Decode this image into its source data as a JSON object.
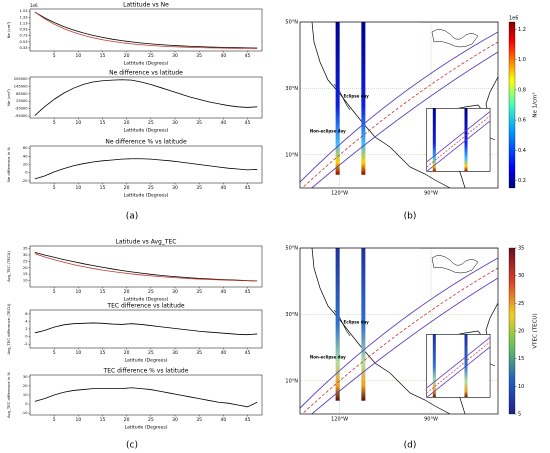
{
  "panel_labels": [
    "(a)",
    "(b)",
    "(c)",
    "(d)"
  ],
  "chart_data": [
    {
      "type": "line",
      "title": "Lattitude vs Ne",
      "xlabel": "Lattitude (Degrees)",
      "ylabel": "Ne (cm³)",
      "offset": "1e6",
      "x": [
        1,
        3,
        5,
        7,
        9,
        11,
        13,
        15,
        17,
        19,
        21,
        23,
        25,
        27,
        29,
        31,
        33,
        35,
        37,
        39,
        41,
        43,
        45,
        47
      ],
      "series": [
        {
          "color": "#000000",
          "values": [
            1.5,
            1.315,
            1.159,
            1.027,
            0.915,
            0.821,
            0.741,
            0.673,
            0.616,
            0.568,
            0.527,
            0.492,
            0.463,
            0.438,
            0.417,
            0.399,
            0.384,
            0.372,
            0.361,
            0.352,
            0.344,
            0.338,
            0.332,
            0.327
          ]
        },
        {
          "color": "#c0392b",
          "values": [
            1.5,
            1.283,
            1.105,
            0.959,
            0.84,
            0.742,
            0.662,
            0.596,
            0.543,
            0.499,
            0.463,
            0.433,
            0.409,
            0.389,
            0.373,
            0.36,
            0.349,
            0.34,
            0.333,
            0.327,
            0.322,
            0.318,
            0.315,
            0.312
          ]
        }
      ],
      "xlim": [
        0,
        48
      ],
      "xticks": [
        5,
        10,
        15,
        20,
        25,
        30,
        35,
        40,
        45
      ],
      "ylim": [
        0.23,
        1.6
      ],
      "yticks": [
        1.53,
        1.33,
        1.13,
        0.93,
        0.73,
        0.53,
        0.33
      ]
    },
    {
      "type": "line",
      "title": "Ne difference vs latitude",
      "xlabel": "Lattitude (Degrees)",
      "ylabel": "Ne (cm³)",
      "x": [
        1,
        3,
        5,
        7,
        9,
        11,
        13,
        15,
        17,
        19,
        21,
        23,
        25,
        27,
        29,
        31,
        33,
        35,
        37,
        39,
        41,
        43,
        45,
        47
      ],
      "series": [
        {
          "color": "#000000",
          "values": [
            -90000,
            -20000,
            40000,
            90000,
            130000,
            160000,
            180000,
            190000,
            195000,
            198000,
            195000,
            180000,
            160000,
            135000,
            110000,
            85000,
            60000,
            40000,
            20000,
            5000,
            -10000,
            -20000,
            -25000,
            -20000
          ]
        }
      ],
      "xlim": [
        0,
        48
      ],
      "xticks": [
        5,
        10,
        15,
        20,
        25,
        30,
        35,
        40,
        45
      ],
      "ylim": [
        -110000,
        220000
      ],
      "yticks": [
        205000,
        145000,
        85000,
        25000,
        -35000,
        -95000
      ]
    },
    {
      "type": "line",
      "title": "Ne difference % vs latitude",
      "xlabel": "Lattitude (Degrees)",
      "ylabel": "Ne difference in %",
      "x": [
        1,
        3,
        5,
        7,
        9,
        11,
        13,
        15,
        17,
        19,
        21,
        23,
        25,
        27,
        29,
        31,
        33,
        35,
        37,
        39,
        41,
        43,
        45,
        47
      ],
      "series": [
        {
          "color": "#000000",
          "values": [
            -15,
            -8,
            2,
            10,
            17,
            22,
            26,
            29,
            31,
            33,
            34,
            34,
            33,
            31,
            29,
            26,
            23,
            20,
            17,
            14,
            11,
            9,
            7,
            8
          ]
        }
      ],
      "xlim": [
        0,
        48
      ],
      "xticks": [
        5,
        10,
        15,
        20,
        25,
        30,
        35,
        40,
        45
      ],
      "ylim": [
        -25,
        65
      ],
      "yticks": [
        60,
        40,
        20,
        0,
        -20
      ]
    },
    {
      "type": "map",
      "latlim": [
        0,
        50
      ],
      "lonlim": [
        -133,
        -68
      ],
      "colormap": "jet",
      "latticks": [
        {
          "value": 50,
          "label": "50°N"
        },
        {
          "value": 30,
          "label": "30°N"
        },
        {
          "value": 10,
          "label": "10°N"
        }
      ],
      "lonticks": [
        {
          "value": -120,
          "label": "120°W"
        },
        {
          "value": -90,
          "label": "90°W"
        }
      ],
      "annotations": [
        "Eclipse day",
        "Non-eclipse day"
      ],
      "colorbar": {
        "label": "Ne 1/cm³",
        "offset": "1e6",
        "clim": [
          0.15,
          1.25
        ],
        "ticks": [
          0.2,
          0.4,
          0.6,
          0.8,
          {
            "value": 1.0,
            "label": "1.0"
          },
          1.2
        ]
      }
    },
    {
      "type": "line",
      "title": "Latitude vs Avg_TEC",
      "xlabel": "Lattitude (Degrees)",
      "ylabel": "Avg_TEC (TECU)",
      "x": [
        1,
        3,
        5,
        7,
        9,
        11,
        13,
        15,
        17,
        19,
        21,
        23,
        25,
        27,
        29,
        31,
        33,
        35,
        37,
        39,
        41,
        43,
        45,
        47
      ],
      "series": [
        {
          "color": "#000000",
          "values": [
            32,
            30,
            28.2,
            26.4,
            24.8,
            23.2,
            21.8,
            20.4,
            19.1,
            17.9,
            16.8,
            15.8,
            14.9,
            14.1,
            13.4,
            12.8,
            12.2,
            11.7,
            11.3,
            10.9,
            10.6,
            10.3,
            10.0,
            9.8
          ]
        },
        {
          "color": "#c0392b",
          "values": [
            31,
            28.5,
            26.3,
            24.3,
            22.5,
            20.9,
            19.5,
            18.2,
            17.1,
            16.1,
            15.2,
            14.4,
            13.7,
            13.1,
            12.5,
            12.0,
            11.6,
            11.2,
            10.9,
            10.6,
            10.3,
            10.1,
            9.9,
            9.7
          ]
        }
      ],
      "xlim": [
        0,
        48
      ],
      "xticks": [
        5,
        10,
        15,
        20,
        25,
        30,
        35,
        40,
        45
      ],
      "ylim": [
        5,
        37
      ],
      "yticks": [
        35,
        30,
        25,
        20,
        15,
        10
      ]
    },
    {
      "type": "line",
      "title": "TEC difference vs latitude",
      "xlabel": "Latitude (Degrees)",
      "ylabel": "Avg_TEC difference (TECU)",
      "x": [
        1,
        3,
        5,
        7,
        9,
        11,
        13,
        15,
        17,
        19,
        21,
        23,
        25,
        27,
        29,
        31,
        33,
        35,
        37,
        39,
        41,
        43,
        45,
        47
      ],
      "series": [
        {
          "color": "#000000",
          "values": [
            1.0,
            1.6,
            2.5,
            3.1,
            3.4,
            3.5,
            3.6,
            3.5,
            3.3,
            3.2,
            3.4,
            3.2,
            2.9,
            2.6,
            2.3,
            2.0,
            1.7,
            1.4,
            1.2,
            1.0,
            0.8,
            0.6,
            0.5,
            0.7
          ]
        }
      ],
      "xlim": [
        0,
        48
      ],
      "xticks": [
        5,
        10,
        15,
        20,
        25,
        30,
        35,
        40,
        45
      ],
      "ylim": [
        -3,
        7
      ],
      "yticks": [
        6,
        4,
        2,
        0,
        -2
      ]
    },
    {
      "type": "line",
      "title": "TEC difference % vs latitude",
      "xlabel": "Latitude (Degrees)",
      "ylabel": "Avg_TEC difference in %",
      "x": [
        1,
        3,
        5,
        7,
        9,
        11,
        13,
        15,
        17,
        19,
        21,
        23,
        25,
        27,
        29,
        31,
        33,
        35,
        37,
        39,
        41,
        43,
        45,
        47
      ],
      "series": [
        {
          "color": "#000000",
          "values": [
            3,
            6,
            10,
            13,
            15,
            16,
            17,
            17,
            17,
            17,
            18,
            17,
            16,
            14,
            12,
            10,
            8,
            6,
            4,
            2,
            1,
            -1,
            -3,
            2
          ]
        }
      ],
      "xlim": [
        0,
        48
      ],
      "xticks": [
        5,
        10,
        15,
        20,
        25,
        30,
        35,
        40,
        45
      ],
      "ylim": [
        -12,
        32
      ],
      "yticks": [
        30,
        20,
        10,
        0,
        -10
      ]
    },
    {
      "type": "map",
      "latlim": [
        0,
        50
      ],
      "lonlim": [
        -133,
        -68
      ],
      "colormap": "rainbow",
      "latticks": [
        {
          "value": 50,
          "label": "50°N"
        },
        {
          "value": 30,
          "label": "30°N"
        },
        {
          "value": 10,
          "label": "10°N"
        }
      ],
      "lonticks": [
        {
          "value": -120,
          "label": "120°W"
        },
        {
          "value": -90,
          "label": "90°W"
        }
      ],
      "annotations": [
        "Eclipse day",
        "Non-eclipse day"
      ],
      "colorbar": {
        "label": "VTEC (TECU)",
        "clim": [
          5,
          35
        ],
        "ticks": [
          5,
          10,
          15,
          20,
          25,
          30,
          35
        ]
      }
    }
  ]
}
